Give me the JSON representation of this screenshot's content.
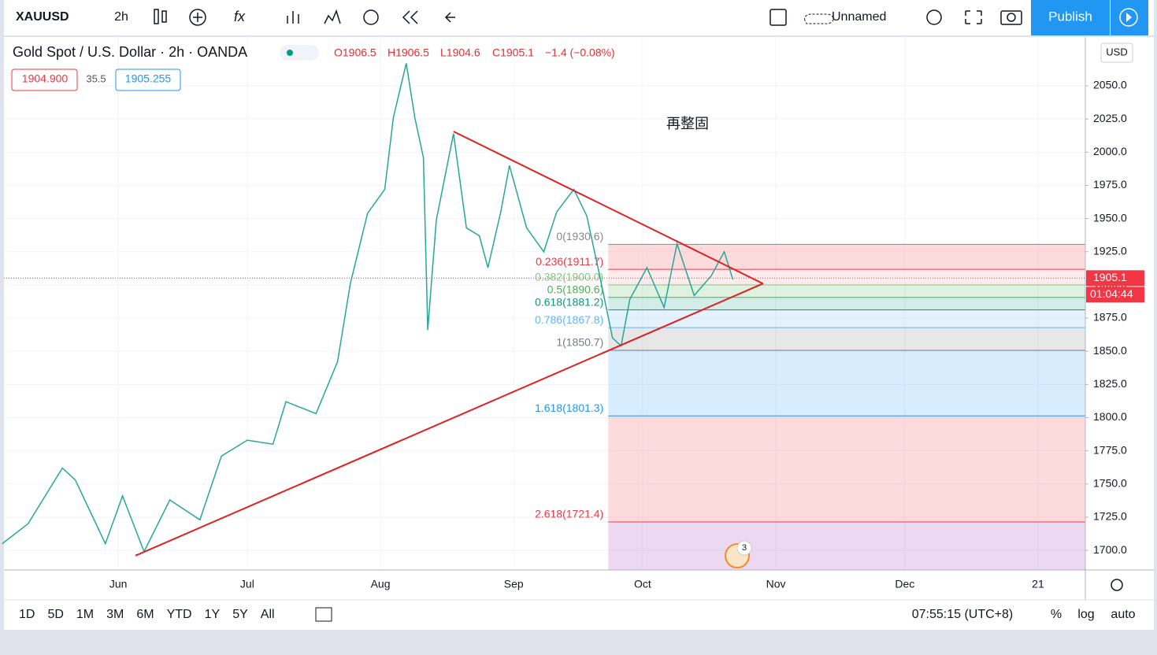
{
  "toolbar": {
    "symbol": "XAUUSD",
    "interval": "2h",
    "layout_name": "Unnamed",
    "publish": "Publish"
  },
  "legend": {
    "title": "Gold Spot / U.S. Dollar · 2h · OANDA",
    "open": "O1906.5",
    "high": "H1906.5",
    "low": "L1904.6",
    "close": "C1905.1",
    "change": "−1.4 (−0.08%)",
    "bid": "1904.900",
    "spread": "35.5",
    "ask": "1905.255",
    "currency": "USD"
  },
  "chart_data": {
    "type": "line",
    "color": "#26a69a",
    "x": [
      126,
      132,
      140,
      143,
      150,
      154,
      159,
      165,
      172,
      177,
      183,
      189,
      192,
      199,
      204,
      207,
      211,
      215,
      217,
      220,
      222,
      224,
      225,
      227,
      231,
      234,
      237,
      239,
      242,
      244,
      248,
      252,
      255,
      259,
      262,
      265,
      268,
      270,
      272,
      276,
      280,
      283,
      287,
      291,
      294,
      296
    ],
    "values": [
      1705,
      1720,
      1762,
      1753,
      1705,
      1741,
      1699,
      1738,
      1723,
      1771,
      1783,
      1780,
      1812,
      1803,
      1842,
      1901,
      1954,
      1972,
      2026,
      2067,
      2026,
      1996,
      1866,
      1949,
      2014,
      1943,
      1937,
      1913,
      1955,
      1990,
      1943,
      1925,
      1955,
      1972,
      1952,
      1907,
      1860,
      1854,
      1889,
      1913,
      1883,
      1931,
      1892,
      1907,
      1925,
      1904
    ],
    "xlim": [
      126.4,
      378
    ],
    "xticks": [
      {
        "value": 153,
        "label": "Jun"
      },
      {
        "value": 183,
        "label": "Jul"
      },
      {
        "value": 214,
        "label": "Aug"
      },
      {
        "value": 245,
        "label": "Sep"
      },
      {
        "value": 275,
        "label": "Oct"
      },
      {
        "value": 306,
        "label": "Nov"
      },
      {
        "value": 336,
        "label": "Dec"
      },
      {
        "value": 367,
        "label": "21"
      }
    ],
    "ylim": [
      1685.2,
      2086.8
    ],
    "yticks": [
      {
        "value": 1700,
        "label": "1700.0"
      },
      {
        "value": 1725,
        "label": "1725.0"
      },
      {
        "value": 1750,
        "label": "1750.0"
      },
      {
        "value": 1775,
        "label": "1775.0"
      },
      {
        "value": 1800,
        "label": "1800.0"
      },
      {
        "value": 1825,
        "label": "1825.0"
      },
      {
        "value": 1850,
        "label": "1850.0"
      },
      {
        "value": 1875,
        "label": "1875.0"
      },
      {
        "value": 1900,
        "label": "1900.0"
      },
      {
        "value": 1925,
        "label": "1925.0"
      },
      {
        "value": 1950,
        "label": "1950.0"
      },
      {
        "value": 1975,
        "label": "1975.0"
      },
      {
        "value": 2000,
        "label": "2000.0"
      },
      {
        "value": 2025,
        "label": "2025.0"
      },
      {
        "value": 2050,
        "label": "2050.0"
      }
    ],
    "grid": true,
    "last_price": 1905.1,
    "countdown": "01:04:44",
    "annotation": "再整固",
    "trendline_color": "#e02020",
    "trendlines": [
      {
        "x": [
          231,
          303
        ],
        "values": [
          2015.6,
          1901
        ]
      },
      {
        "x": [
          157,
          303
        ],
        "values": [
          1696,
          1901
        ]
      }
    ],
    "fib_start": 267,
    "fib_levels": [
      {
        "label": "0(1930.6)",
        "price": 1930.6,
        "color": "#888888",
        "zone": "rgba(242,54,69,0.18)"
      },
      {
        "label": "0.236(1911.7)",
        "price": 1911.7,
        "color": "#f23645",
        "zone": "rgba(242,54,69,0.10)"
      },
      {
        "label": "0.382(1900.0)",
        "price": 1900.0,
        "color": "#81c784",
        "zone": "rgba(76,175,80,0.18)"
      },
      {
        "label": "0.5(1890.6)",
        "price": 1890.6,
        "color": "#4caf50",
        "zone": "rgba(8,153,129,0.18)"
      },
      {
        "label": "0.618(1881.2)",
        "price": 1881.2,
        "color": "#089981",
        "zone": "rgba(100,181,246,0.18)"
      },
      {
        "label": "0.786(1867.8)",
        "price": 1867.8,
        "color": "#64b5f6",
        "zone": "rgba(120,120,120,0.18)"
      },
      {
        "label": "1(1850.7)",
        "price": 1850.7,
        "color": "#787b86",
        "zone": "rgba(33,150,243,0.18)"
      },
      {
        "label": "1.618(1801.3)",
        "price": 1801.3,
        "color": "#2196f3",
        "zone": "rgba(242,54,69,0.18)"
      },
      {
        "label": "2.618(1721.4)",
        "price": 1721.4,
        "color": "#f23645",
        "zone": "rgba(156,39,176,0.18)"
      }
    ],
    "event_count": 3
  },
  "bottom_bar": {
    "ranges": [
      "1D",
      "5D",
      "1M",
      "3M",
      "6M",
      "YTD",
      "1Y",
      "5Y",
      "All"
    ],
    "clock": "07:55:15 (UTC+8)",
    "percent": "%",
    "log": "log",
    "auto": "auto"
  }
}
